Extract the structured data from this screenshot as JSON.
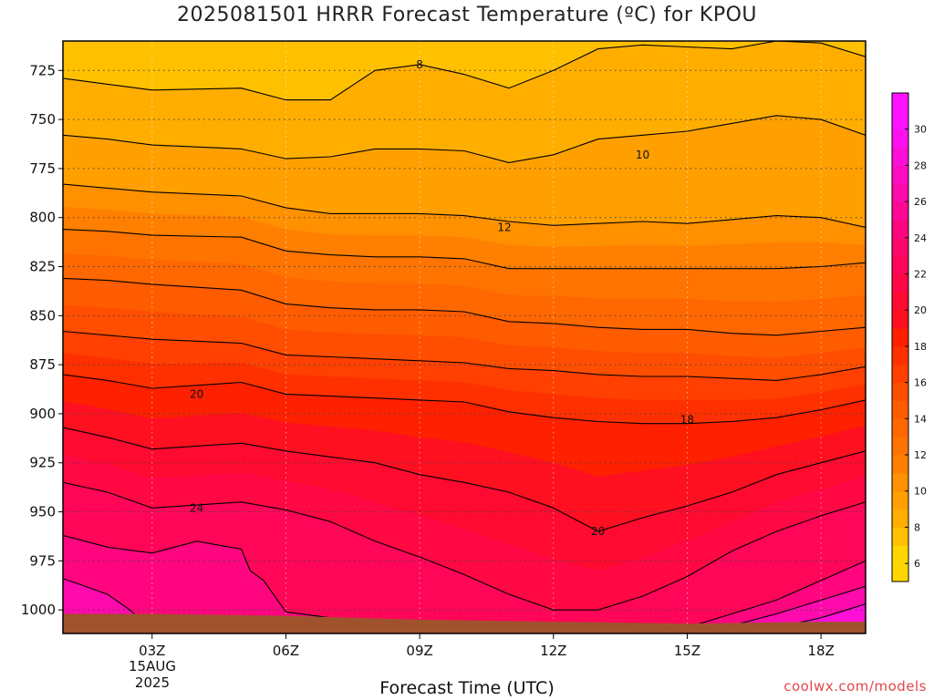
{
  "chart_data": {
    "type": "heatmap",
    "title": "2025081501 HRRR Forecast Temperature (ºC) for KPOU",
    "xlabel": "Forecast Time (UTC)",
    "ylabel": "",
    "credit": "coolwx.com/models",
    "x_ticks": [
      "03Z",
      "06Z",
      "09Z",
      "12Z",
      "15Z",
      "18Z"
    ],
    "x_date_line1": "15AUG",
    "x_date_line2": "2025",
    "x_range_hours": [
      1,
      19
    ],
    "y_ticks": [
      725,
      750,
      775,
      800,
      825,
      850,
      875,
      900,
      925,
      950,
      975,
      1000
    ],
    "y_range_hpa": [
      710,
      1012
    ],
    "y_reversed": true,
    "grid": true,
    "colorbar_levels": [
      6,
      8,
      10,
      12,
      14,
      16,
      18,
      20,
      22,
      24,
      26,
      28,
      30
    ],
    "colorbar_position": "right",
    "colors": {
      "c6": "#ffd700",
      "c7": "#ffc000",
      "c8": "#ffae00",
      "c9": "#ffa000",
      "c10": "#ff9000",
      "c11": "#ff8000",
      "c12": "#ff7400",
      "c13": "#ff6800",
      "c14": "#ff5c00",
      "c15": "#ff4e00",
      "c16": "#ff4000",
      "c17": "#ff3000",
      "c18": "#ff2000",
      "c19": "#ff1020",
      "c20": "#ff0a30",
      "c21": "#ff0844",
      "c22": "#ff0658",
      "c23": "#ff066c",
      "c24": "#ff0680",
      "c25": "#ff0896",
      "c26": "#ff0aac",
      "c27": "#ff0cc2",
      "c28": "#ff0ed8",
      "c29": "#ff10ee",
      "c30": "#ff12ff",
      "ground": "#a0522d"
    },
    "contour_labels": [
      {
        "value": "8",
        "hour": 9.0,
        "hpa": 722
      },
      {
        "value": "10",
        "hour": 14.0,
        "hpa": 768
      },
      {
        "value": "12",
        "hour": 10.9,
        "hpa": 805
      },
      {
        "value": "20",
        "hour": 4.0,
        "hpa": 890
      },
      {
        "value": "18",
        "hour": 15.0,
        "hpa": 903
      },
      {
        "value": "24",
        "hour": 4.0,
        "hpa": 948
      },
      {
        "value": "20",
        "hour": 13.0,
        "hpa": 960
      }
    ],
    "isotherms": [
      {
        "value": 8,
        "points": [
          [
            1,
            729
          ],
          [
            2,
            732
          ],
          [
            3,
            735
          ],
          [
            5,
            734
          ],
          [
            6,
            740
          ],
          [
            7,
            740
          ],
          [
            8,
            725
          ],
          [
            9,
            722
          ],
          [
            10,
            727
          ],
          [
            11,
            734
          ],
          [
            12,
            725
          ],
          [
            13,
            714
          ],
          [
            14,
            712
          ],
          [
            15,
            713
          ],
          [
            16,
            714
          ],
          [
            17,
            710
          ],
          [
            18,
            711
          ],
          [
            19,
            718
          ]
        ]
      },
      {
        "value": 9,
        "points": [
          [
            1,
            758
          ],
          [
            2,
            760
          ],
          [
            3,
            763
          ],
          [
            5,
            765
          ],
          [
            6,
            770
          ],
          [
            7,
            769
          ],
          [
            8,
            765
          ],
          [
            9,
            765
          ],
          [
            10,
            766
          ],
          [
            11,
            772
          ],
          [
            12,
            768
          ],
          [
            13,
            760
          ],
          [
            14,
            758
          ],
          [
            15,
            756
          ],
          [
            16,
            752
          ],
          [
            17,
            748
          ],
          [
            18,
            750
          ],
          [
            19,
            758
          ]
        ]
      },
      {
        "value": 10,
        "points": [
          [
            1,
            783
          ],
          [
            2,
            785
          ],
          [
            3,
            787
          ],
          [
            5,
            789
          ],
          [
            6,
            795
          ],
          [
            7,
            798
          ],
          [
            8,
            798
          ],
          [
            9,
            798
          ],
          [
            10,
            799
          ],
          [
            11,
            802
          ],
          [
            12,
            804
          ],
          [
            13,
            803
          ],
          [
            14,
            802
          ],
          [
            15,
            803
          ],
          [
            16,
            801
          ],
          [
            17,
            799
          ],
          [
            18,
            800
          ],
          [
            19,
            805
          ]
        ]
      },
      {
        "value": 12,
        "points": [
          [
            1,
            806
          ],
          [
            2,
            807
          ],
          [
            3,
            809
          ],
          [
            5,
            810
          ],
          [
            6,
            817
          ],
          [
            7,
            819
          ],
          [
            8,
            820
          ],
          [
            9,
            820
          ],
          [
            10,
            821
          ],
          [
            11,
            826
          ],
          [
            12,
            826
          ],
          [
            13,
            826
          ],
          [
            14,
            826
          ],
          [
            15,
            826
          ],
          [
            16,
            826
          ],
          [
            17,
            826
          ],
          [
            18,
            825
          ],
          [
            19,
            823
          ]
        ]
      },
      {
        "value": 14,
        "points": [
          [
            1,
            831
          ],
          [
            2,
            832
          ],
          [
            3,
            834
          ],
          [
            5,
            837
          ],
          [
            6,
            844
          ],
          [
            7,
            846
          ],
          [
            8,
            847
          ],
          [
            9,
            847
          ],
          [
            10,
            848
          ],
          [
            11,
            853
          ],
          [
            12,
            854
          ],
          [
            13,
            856
          ],
          [
            14,
            857
          ],
          [
            15,
            857
          ],
          [
            16,
            859
          ],
          [
            17,
            860
          ],
          [
            18,
            858
          ],
          [
            19,
            856
          ]
        ]
      },
      {
        "value": 16,
        "points": [
          [
            1,
            858
          ],
          [
            2,
            860
          ],
          [
            3,
            862
          ],
          [
            5,
            864
          ],
          [
            6,
            870
          ],
          [
            7,
            871
          ],
          [
            8,
            872
          ],
          [
            9,
            873
          ],
          [
            10,
            874
          ],
          [
            11,
            877
          ],
          [
            12,
            878
          ],
          [
            13,
            880
          ],
          [
            14,
            881
          ],
          [
            15,
            881
          ],
          [
            16,
            882
          ],
          [
            17,
            883
          ],
          [
            18,
            880
          ],
          [
            19,
            876
          ]
        ]
      },
      {
        "value": 18,
        "points": [
          [
            1,
            880
          ],
          [
            2,
            883
          ],
          [
            3,
            887
          ],
          [
            5,
            884
          ],
          [
            6,
            890
          ],
          [
            7,
            891
          ],
          [
            8,
            892
          ],
          [
            9,
            893
          ],
          [
            10,
            894
          ],
          [
            11,
            899
          ],
          [
            12,
            902
          ],
          [
            13,
            904
          ],
          [
            14,
            905
          ],
          [
            15,
            905
          ],
          [
            16,
            904
          ],
          [
            17,
            902
          ],
          [
            18,
            898
          ],
          [
            19,
            893
          ]
        ]
      },
      {
        "value": 20,
        "points": [
          [
            1,
            907
          ],
          [
            2,
            912
          ],
          [
            3,
            918
          ],
          [
            5,
            915
          ],
          [
            6,
            919
          ],
          [
            7,
            922
          ],
          [
            8,
            925
          ],
          [
            9,
            931
          ],
          [
            10,
            935
          ],
          [
            11,
            940
          ],
          [
            12,
            948
          ],
          [
            13,
            960
          ],
          [
            14,
            953
          ],
          [
            15,
            947
          ],
          [
            16,
            940
          ],
          [
            17,
            931
          ],
          [
            18,
            925
          ],
          [
            19,
            919
          ]
        ]
      },
      {
        "value": 22,
        "points": [
          [
            1,
            935
          ],
          [
            2,
            940
          ],
          [
            3,
            948
          ],
          [
            5,
            945
          ],
          [
            6,
            949
          ],
          [
            7,
            955
          ],
          [
            8,
            965
          ],
          [
            9,
            973
          ],
          [
            10,
            982
          ],
          [
            11,
            992
          ],
          [
            12,
            1000
          ],
          [
            13,
            1000
          ],
          [
            14,
            993
          ],
          [
            15,
            983
          ],
          [
            16,
            970
          ],
          [
            17,
            960
          ],
          [
            18,
            952
          ],
          [
            19,
            945
          ]
        ]
      },
      {
        "value": 24,
        "points": [
          [
            1,
            962
          ],
          [
            2,
            968
          ],
          [
            3,
            971
          ],
          [
            4,
            965
          ],
          [
            5,
            969
          ],
          [
            5.2,
            980
          ],
          [
            5.5,
            985
          ],
          [
            6,
            1001
          ],
          [
            7,
            1004
          ],
          [
            8,
            1006
          ],
          [
            9,
            1007
          ],
          [
            10,
            1009
          ],
          [
            12,
            1011
          ],
          [
            14,
            1011
          ],
          [
            15,
            1009
          ],
          [
            16,
            1002
          ],
          [
            17,
            995
          ],
          [
            18,
            985
          ],
          [
            19,
            975
          ]
        ]
      },
      {
        "value": 26,
        "points": [
          [
            1,
            984
          ],
          [
            2,
            992
          ],
          [
            2.5,
            1000
          ],
          [
            3,
            1010
          ],
          [
            14,
            1012
          ],
          [
            15,
            1011
          ],
          [
            16,
            1008
          ],
          [
            17,
            1002
          ],
          [
            18,
            995
          ],
          [
            19,
            988
          ]
        ]
      },
      {
        "value": 28,
        "points": [
          [
            14,
            1012
          ],
          [
            16,
            1011
          ],
          [
            17,
            1009
          ],
          [
            18,
            1004
          ],
          [
            19,
            997
          ]
        ]
      },
      {
        "value": 30,
        "points": [
          [
            17,
            1012
          ],
          [
            18,
            1010
          ],
          [
            19,
            1007
          ]
        ]
      }
    ],
    "ground_surface": [
      [
        1,
        1002
      ],
      [
        3,
        1002
      ],
      [
        6,
        1003
      ],
      [
        9,
        1005
      ],
      [
        12,
        1006
      ],
      [
        15,
        1007
      ],
      [
        18,
        1006
      ],
      [
        19,
        1006
      ]
    ]
  }
}
